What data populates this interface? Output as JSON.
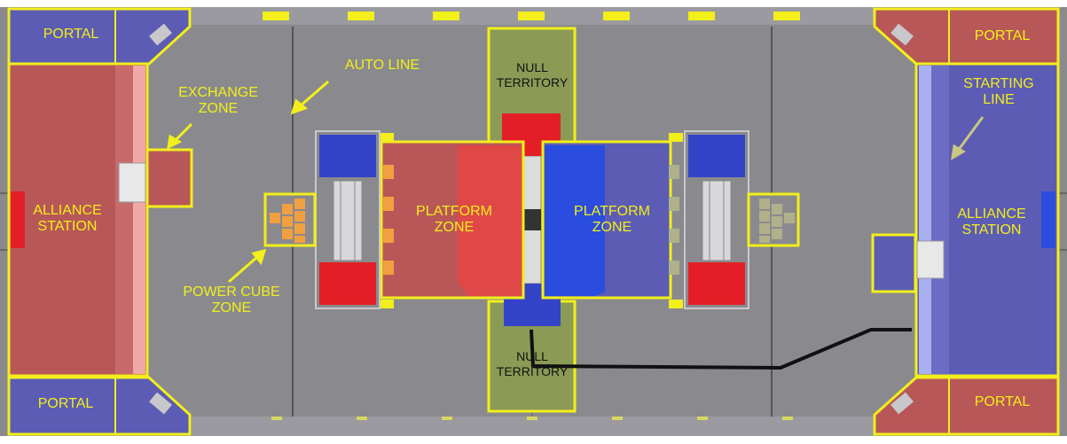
{
  "labels": {
    "portal_top_left": "PORTAL",
    "portal_bottom_left": "PORTAL",
    "portal_top_right": "PORTAL",
    "portal_bottom_right": "PORTAL",
    "alliance_station_left": "ALLIANCE\nSTATION",
    "alliance_station_right": "ALLIANCE\nSTATION",
    "exchange_zone": "EXCHANGE\nZONE",
    "auto_line": "AUTO LINE",
    "power_cube_zone": "POWER CUBE\nZONE",
    "platform_zone_left": "PLATFORM\nZONE",
    "platform_zone_right": "PLATFORM\nZONE",
    "null_territory_top": "NULL\nTERRITORY",
    "null_territory_bottom": "NULL\nTERRITORY",
    "starting_line": "STARTING\nLINE"
  },
  "colors": {
    "carpet": "#8a8a8e",
    "red_alliance": "#b85758",
    "blue_alliance": "#5c5cb4",
    "label_yellow": "#f2ef1a",
    "null_territory": "#8b9a55",
    "plate_red": "#e41e26",
    "plate_blue": "#3344c8",
    "path_line": "#111111"
  }
}
